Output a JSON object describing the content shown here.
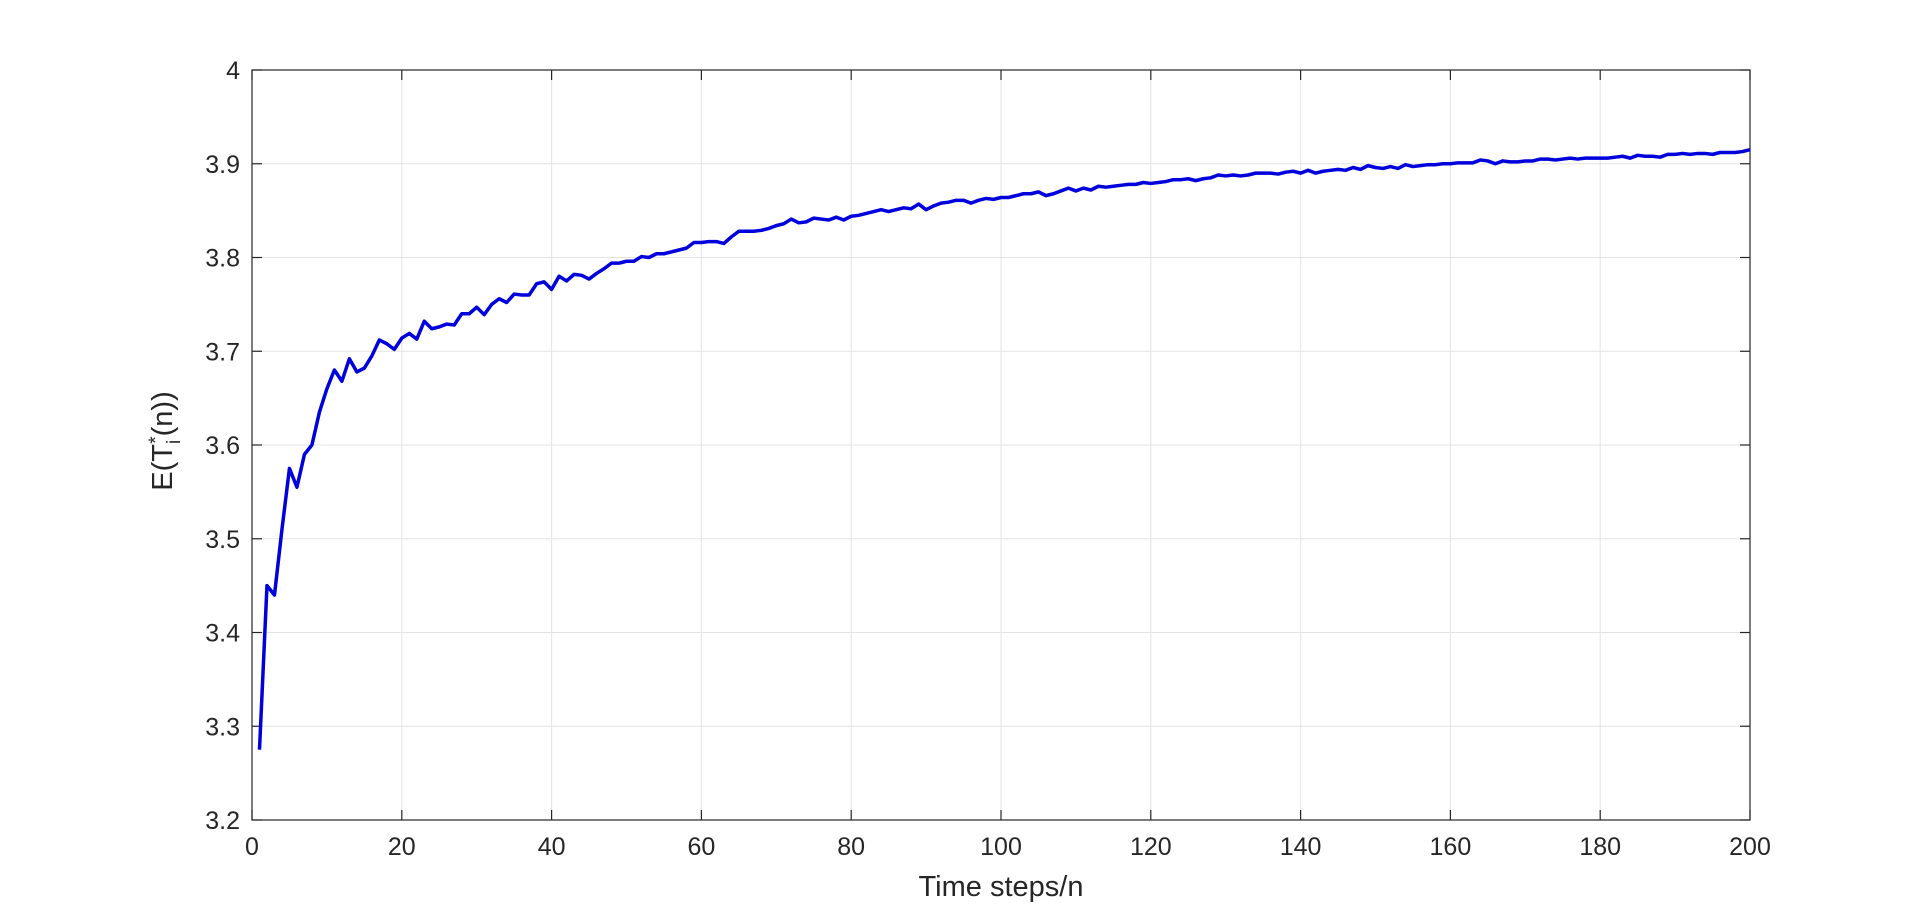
{
  "chart_data": {
    "type": "line",
    "xlabel": "Time steps/n",
    "ylabel": [
      "E(T",
      "i",
      "*",
      "(n))"
    ],
    "xlim": [
      0,
      200
    ],
    "ylim": [
      3.2,
      4
    ],
    "xticks": [
      0,
      20,
      40,
      60,
      80,
      100,
      120,
      140,
      160,
      180,
      200
    ],
    "yticks": [
      3.2,
      3.3,
      3.4,
      3.5,
      3.6,
      3.7,
      3.8,
      3.9,
      4
    ],
    "grid": true,
    "x": [
      1,
      2,
      3,
      4,
      5,
      6,
      7,
      8,
      9,
      10,
      11,
      12,
      13,
      14,
      15,
      16,
      17,
      18,
      19,
      20,
      21,
      22,
      23,
      24,
      25,
      26,
      27,
      28,
      29,
      30,
      31,
      32,
      33,
      34,
      35,
      36,
      37,
      38,
      39,
      40,
      41,
      42,
      43,
      44,
      45,
      46,
      47,
      48,
      49,
      50,
      51,
      52,
      53,
      54,
      55,
      56,
      57,
      58,
      59,
      60,
      61,
      62,
      63,
      64,
      65,
      66,
      67,
      68,
      69,
      70,
      71,
      72,
      73,
      74,
      75,
      76,
      77,
      78,
      79,
      80,
      81,
      82,
      83,
      84,
      85,
      86,
      87,
      88,
      89,
      90,
      91,
      92,
      93,
      94,
      95,
      96,
      97,
      98,
      99,
      100,
      101,
      102,
      103,
      104,
      105,
      106,
      107,
      108,
      109,
      110,
      111,
      112,
      113,
      114,
      115,
      116,
      117,
      118,
      119,
      120,
      121,
      122,
      123,
      124,
      125,
      126,
      127,
      128,
      129,
      130,
      131,
      132,
      133,
      134,
      135,
      136,
      137,
      138,
      139,
      140,
      141,
      142,
      143,
      144,
      145,
      146,
      147,
      148,
      149,
      150,
      151,
      152,
      153,
      154,
      155,
      156,
      157,
      158,
      159,
      160,
      161,
      162,
      163,
      164,
      165,
      166,
      167,
      168,
      169,
      170,
      171,
      172,
      173,
      174,
      175,
      176,
      177,
      178,
      179,
      180,
      181,
      182,
      183,
      184,
      185,
      186,
      187,
      188,
      189,
      190,
      191,
      192,
      193,
      194,
      195,
      196,
      197,
      198,
      199,
      200
    ],
    "series": [
      {
        "color": "#0000dd",
        "values": [
          3.275,
          3.45,
          3.44,
          3.51,
          3.575,
          3.555,
          3.59,
          3.6,
          3.635,
          3.66,
          3.68,
          3.668,
          3.692,
          3.678,
          3.682,
          3.695,
          3.712,
          3.708,
          3.702,
          3.714,
          3.719,
          3.713,
          3.732,
          3.724,
          3.726,
          3.729,
          3.728,
          3.74,
          3.74,
          3.747,
          3.739,
          3.75,
          3.756,
          3.752,
          3.761,
          3.76,
          3.76,
          3.772,
          3.774,
          3.766,
          3.78,
          3.775,
          3.782,
          3.781,
          3.777,
          3.783,
          3.788,
          3.794,
          3.794,
          3.796,
          3.796,
          3.801,
          3.8,
          3.804,
          3.804,
          3.806,
          3.808,
          3.81,
          3.816,
          3.816,
          3.817,
          3.817,
          3.815,
          3.822,
          3.828,
          3.828,
          3.828,
          3.829,
          3.831,
          3.834,
          3.836,
          3.841,
          3.837,
          3.838,
          3.842,
          3.841,
          3.84,
          3.843,
          3.84,
          3.844,
          3.845,
          3.847,
          3.849,
          3.851,
          3.849,
          3.851,
          3.853,
          3.852,
          3.857,
          3.851,
          3.855,
          3.858,
          3.859,
          3.861,
          3.861,
          3.858,
          3.861,
          3.863,
          3.862,
          3.864,
          3.864,
          3.866,
          3.868,
          3.868,
          3.87,
          3.866,
          3.868,
          3.871,
          3.874,
          3.871,
          3.874,
          3.872,
          3.876,
          3.875,
          3.876,
          3.877,
          3.878,
          3.878,
          3.88,
          3.879,
          3.88,
          3.881,
          3.883,
          3.883,
          3.884,
          3.882,
          3.884,
          3.885,
          3.888,
          3.887,
          3.888,
          3.887,
          3.888,
          3.89,
          3.89,
          3.89,
          3.889,
          3.891,
          3.892,
          3.89,
          3.893,
          3.89,
          3.892,
          3.893,
          3.894,
          3.893,
          3.896,
          3.894,
          3.898,
          3.896,
          3.895,
          3.897,
          3.895,
          3.899,
          3.897,
          3.898,
          3.899,
          3.899,
          3.9,
          3.9,
          3.901,
          3.901,
          3.901,
          3.904,
          3.903,
          3.9,
          3.903,
          3.902,
          3.902,
          3.903,
          3.903,
          3.905,
          3.905,
          3.904,
          3.905,
          3.906,
          3.905,
          3.906,
          3.906,
          3.906,
          3.906,
          3.907,
          3.908,
          3.906,
          3.909,
          3.908,
          3.908,
          3.907,
          3.91,
          3.91,
          3.911,
          3.91,
          3.911,
          3.911,
          3.91,
          3.912,
          3.912,
          3.912,
          3.913,
          3.915
        ]
      }
    ]
  }
}
